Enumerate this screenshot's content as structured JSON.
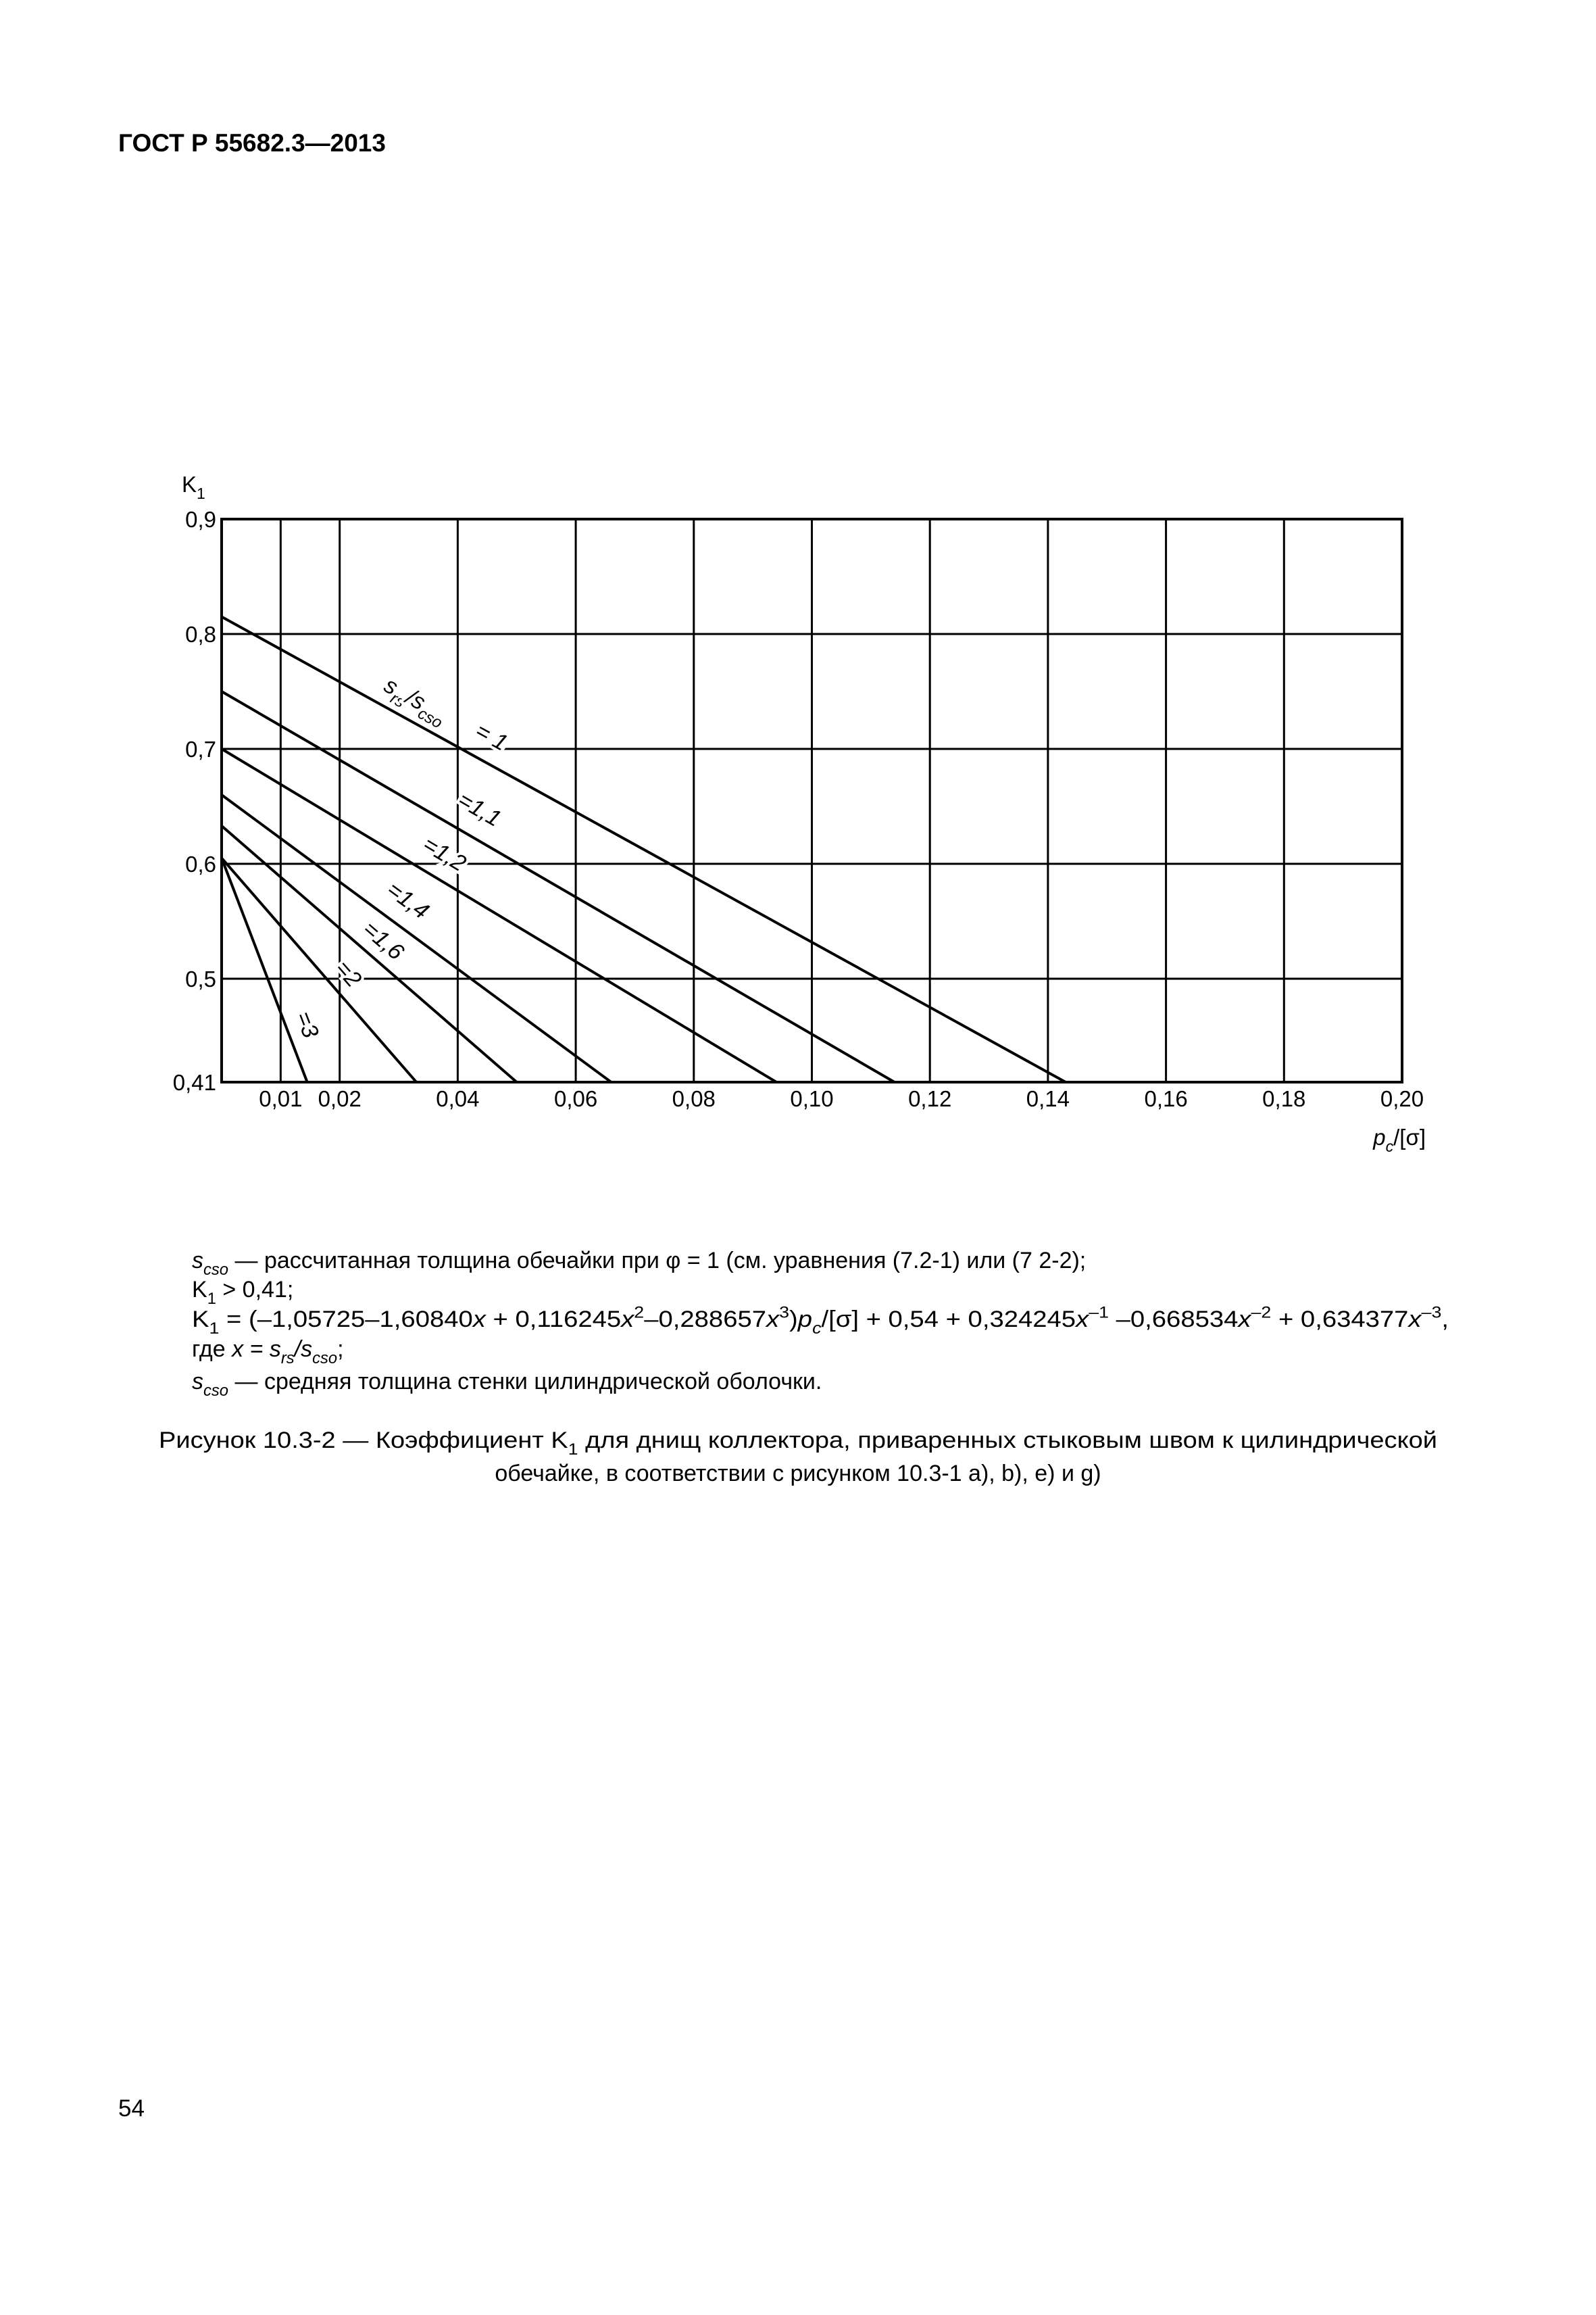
{
  "header": {
    "title": "ГОСТ Р 55682.3—2013"
  },
  "chart_data": {
    "type": "line",
    "y_label": [
      {
        "text": "K",
        "style": "normal"
      },
      {
        "text": "1",
        "style": "sub"
      }
    ],
    "x_label": [
      {
        "text": "p",
        "style": "italic"
      },
      {
        "text": "c",
        "style": "sub-italic"
      },
      {
        "text": "/[σ]",
        "style": "normal"
      }
    ],
    "ratio_label": [
      {
        "text": "s",
        "style": "italic"
      },
      {
        "text": "rs",
        "style": "sub-italic"
      },
      {
        "text": "/s",
        "style": "italic"
      },
      {
        "text": "cso",
        "style": "sub-italic"
      }
    ],
    "xlim": [
      0,
      0.2
    ],
    "ylim": [
      0.41,
      0.9
    ],
    "xticks": [
      {
        "value": 0.01,
        "label": "0,01"
      },
      {
        "value": 0.02,
        "label": "0,02"
      },
      {
        "value": 0.04,
        "label": "0,04"
      },
      {
        "value": 0.06,
        "label": "0,06"
      },
      {
        "value": 0.08,
        "label": "0,08"
      },
      {
        "value": 0.1,
        "label": "0,10"
      },
      {
        "value": 0.12,
        "label": "0,12"
      },
      {
        "value": 0.14,
        "label": "0,14"
      },
      {
        "value": 0.16,
        "label": "0,16"
      },
      {
        "value": 0.18,
        "label": "0,18"
      },
      {
        "value": 0.2,
        "label": "0,20"
      }
    ],
    "yticks": [
      {
        "value": 0.41,
        "label": "0,41"
      },
      {
        "value": 0.5,
        "label": "0,5"
      },
      {
        "value": 0.6,
        "label": "0,6"
      },
      {
        "value": 0.7,
        "label": "0,7"
      },
      {
        "value": 0.8,
        "label": "0,8"
      },
      {
        "value": 0.9,
        "label": "0,9"
      }
    ],
    "grid": true,
    "series": [
      {
        "name": "= 1",
        "color": "#000000",
        "x": [
          0,
          0.143
        ],
        "values": [
          0.815,
          0.41
        ]
      },
      {
        "name": "=1,1",
        "color": "#000000",
        "x": [
          0,
          0.114
        ],
        "values": [
          0.75,
          0.41
        ]
      },
      {
        "name": "=1,2",
        "color": "#000000",
        "x": [
          0,
          0.094
        ],
        "values": [
          0.7,
          0.41
        ]
      },
      {
        "name": "=1,4",
        "color": "#000000",
        "x": [
          0,
          0.066
        ],
        "values": [
          0.66,
          0.41
        ]
      },
      {
        "name": "=1,6",
        "color": "#000000",
        "x": [
          0,
          0.05
        ],
        "values": [
          0.633,
          0.41
        ]
      },
      {
        "name": "=2",
        "color": "#000000",
        "x": [
          0,
          0.033
        ],
        "values": [
          0.605,
          0.41
        ]
      },
      {
        "name": "=3",
        "color": "#000000",
        "x": [
          0,
          0.0145
        ],
        "values": [
          0.605,
          0.41
        ]
      }
    ]
  },
  "notes": [
    [
      {
        "text": "s",
        "style": "italic"
      },
      {
        "text": "cso",
        "style": "sub-italic"
      },
      " — рассчитанная толщина обечайки при φ = 1 (см. уравнения (7.2-1) или (7 2-2);"
    ],
    [
      "K",
      {
        "text": "1",
        "style": "sub"
      },
      " > 0,41;"
    ],
    [
      "K",
      {
        "text": "1",
        "style": "sub"
      },
      " = (–1,05725–1,60840",
      {
        "text": "x",
        "style": "italic"
      },
      " + 0,116245",
      {
        "text": "x",
        "style": "italic"
      },
      {
        "text": "2",
        "style": "sup"
      },
      "–0,288657",
      {
        "text": "x",
        "style": "italic"
      },
      {
        "text": "3",
        "style": "sup"
      },
      ")",
      {
        "text": "p",
        "style": "italic"
      },
      {
        "text": "c",
        "style": "sub-italic"
      },
      "/[σ] + 0,54 + 0,324245",
      {
        "text": "x",
        "style": "italic"
      },
      {
        "text": "–1",
        "style": "sup"
      },
      " –0,668534",
      {
        "text": "x",
        "style": "italic"
      },
      {
        "text": "–2",
        "style": "sup"
      },
      " + 0,634377",
      {
        "text": "x",
        "style": "italic"
      },
      {
        "text": "–3",
        "style": "sup"
      },
      ","
    ],
    [
      "где ",
      {
        "text": "x = s",
        "style": "italic"
      },
      {
        "text": "rs",
        "style": "sub-italic"
      },
      {
        "text": "/s",
        "style": "italic"
      },
      {
        "text": "cso",
        "style": "sub-italic"
      },
      ";"
    ],
    [
      {
        "text": "s",
        "style": "italic"
      },
      {
        "text": "cso",
        "style": "sub-italic"
      },
      " — средняя толщина стенки цилиндрической оболочки."
    ]
  ],
  "caption": [
    [
      "Рисунок 10.3-2 — Коэффициент K",
      {
        "text": "1",
        "style": "sub"
      },
      " для днищ коллектора, приваренных стыковым швом к цилиндрической"
    ],
    [
      "обечайке, в соответствии с рисунком 10.3-1 a), b), e) и g)"
    ]
  ],
  "page_number": "54"
}
